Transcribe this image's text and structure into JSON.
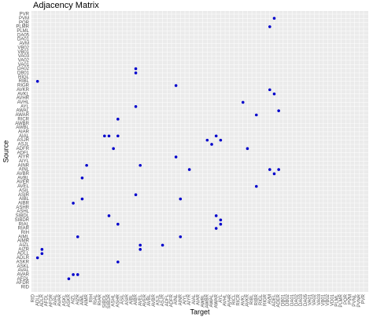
{
  "chart_data": {
    "type": "scatter",
    "title": "Adjacency Matrix",
    "x_label": "Target",
    "y_label": "Source",
    "color": "#0000cc",
    "grid": true,
    "x_categories": [
      "RID",
      "ADLL",
      "ADLR",
      "AFDL",
      "AFDR",
      "AVAL",
      "AVAR",
      "ASKL",
      "ASKR",
      "AIZL",
      "AIZR",
      "AIML",
      "AIMR",
      "RIH",
      "RIAL",
      "RIAR",
      "SIBDL",
      "SIBDR",
      "ASHL",
      "ASHR",
      "ASIL",
      "ASIR",
      "AIBL",
      "AIBR",
      "AVEL",
      "AVER",
      "AVBL",
      "AVBR",
      "ASJL",
      "ASJR",
      "ADFL",
      "ADFR",
      "AINL",
      "AINR",
      "AIYL",
      "AIYR",
      "AIAL",
      "AIAR",
      "AWBL",
      "AWBR",
      "AWAL",
      "AWAR",
      "AYL",
      "AVHL",
      "AVHR",
      "RICL",
      "RICR",
      "AVKL",
      "AVKR",
      "RIBL",
      "RIBR",
      "RIGL",
      "RIGR",
      "AVM",
      "ADEL",
      "ADER",
      "DB01",
      "DB02",
      "DA01",
      "DA02",
      "DA03",
      "DA05",
      "VA01",
      "VA02",
      "VA03",
      "VB01",
      "VB02",
      "VD01",
      "PLML",
      "PLMR",
      "PQR",
      "PVM",
      "PVNL",
      "PVNR",
      "PVR"
    ],
    "y_categories": [
      "RID",
      "AFDR",
      "AFDL",
      "AVAR",
      "AVAL",
      "ASKL",
      "ASKR",
      "ADLR",
      "ADLL",
      "AIZR",
      "AIZL",
      "AIMR",
      "AIML",
      "RIH",
      "RIAR",
      "RIAL",
      "SIBDR",
      "SIBDL",
      "ASHL",
      "ASHR",
      "AIBR",
      "AIBL",
      "ASIR",
      "ASIL",
      "AVEL",
      "AVER",
      "AVBL",
      "AVBR",
      "AINL",
      "AINR",
      "AIYL",
      "AIYR",
      "ADFL",
      "ADFR",
      "ASJL",
      "ASJR",
      "AIAL",
      "AIAR",
      "AWBL",
      "AWBR",
      "RICR",
      "AWAR",
      "AWAL",
      "AYL",
      "AVHL",
      "AVHR",
      "AVKL",
      "AVKR",
      "RIGR",
      "RIBL",
      "RIGL",
      "DB01",
      "DA02",
      "VA01",
      "VA02",
      "VA03",
      "VB01",
      "VB02",
      "AVM",
      "DA01",
      "DA05",
      "PLML",
      "PLMR",
      "PQR",
      "PVM",
      "PVR"
    ],
    "points": {
      "x": [
        "ADEL",
        "AVM",
        "AIBR",
        "AIBR",
        "ADLL",
        "AINL",
        "AVM",
        "ADEL",
        "AVKL",
        "AIBR",
        "RIBR",
        "ADER",
        "ASHR",
        "SIBDL",
        "SIBDR",
        "ASHR",
        "ASHL",
        "AWAR",
        "AYL",
        "AWBR",
        "AWAL",
        "AVKR",
        "AINL",
        "AIMR",
        "AVEL",
        "AIYR",
        "AVM",
        "ADER",
        "ADEL",
        "AIML",
        "RIBR",
        "AIBR",
        "AIML",
        "AINR",
        "AIZL",
        "SIBDR",
        "AWAR",
        "AYL",
        "ASHR",
        "AYL",
        "AWAR",
        "AIZR",
        "AINR",
        "AVEL",
        "ASJR",
        "AVEL",
        "ADLR",
        "ADLR",
        "ADLL",
        "ASHR",
        "AIZL",
        "AIZR",
        "ASKR"
      ],
      "y": [
        "PVM",
        "PLMR",
        "DA02",
        "DB01",
        "RIBL",
        "RIGR",
        "AVKR",
        "AVKL",
        "AVHL",
        "AYL",
        "AWAR",
        "AWAL",
        "RICR",
        "AIAL",
        "AIAL",
        "AIAL",
        "ADFR",
        "AIAL",
        "ASJR",
        "ASJR",
        "ASJL",
        "ADFR",
        "AIYR",
        "AINR",
        "AINR",
        "AINL",
        "AINL",
        "AINL",
        "AVBR",
        "AVBL",
        "AVEL",
        "ASIR",
        "AIBL",
        "AIBL",
        "AIBR",
        "SIBDL",
        "SIBDL",
        "SIBDR",
        "RIAL",
        "RIAL",
        "RIAR",
        "AIML",
        "AIML",
        "AIZL",
        "AIZL",
        "AIZR",
        "AIZR",
        "ADLL",
        "ADLR",
        "ASKR",
        "AVAR",
        "AVAR",
        "AFDL"
      ]
    }
  }
}
